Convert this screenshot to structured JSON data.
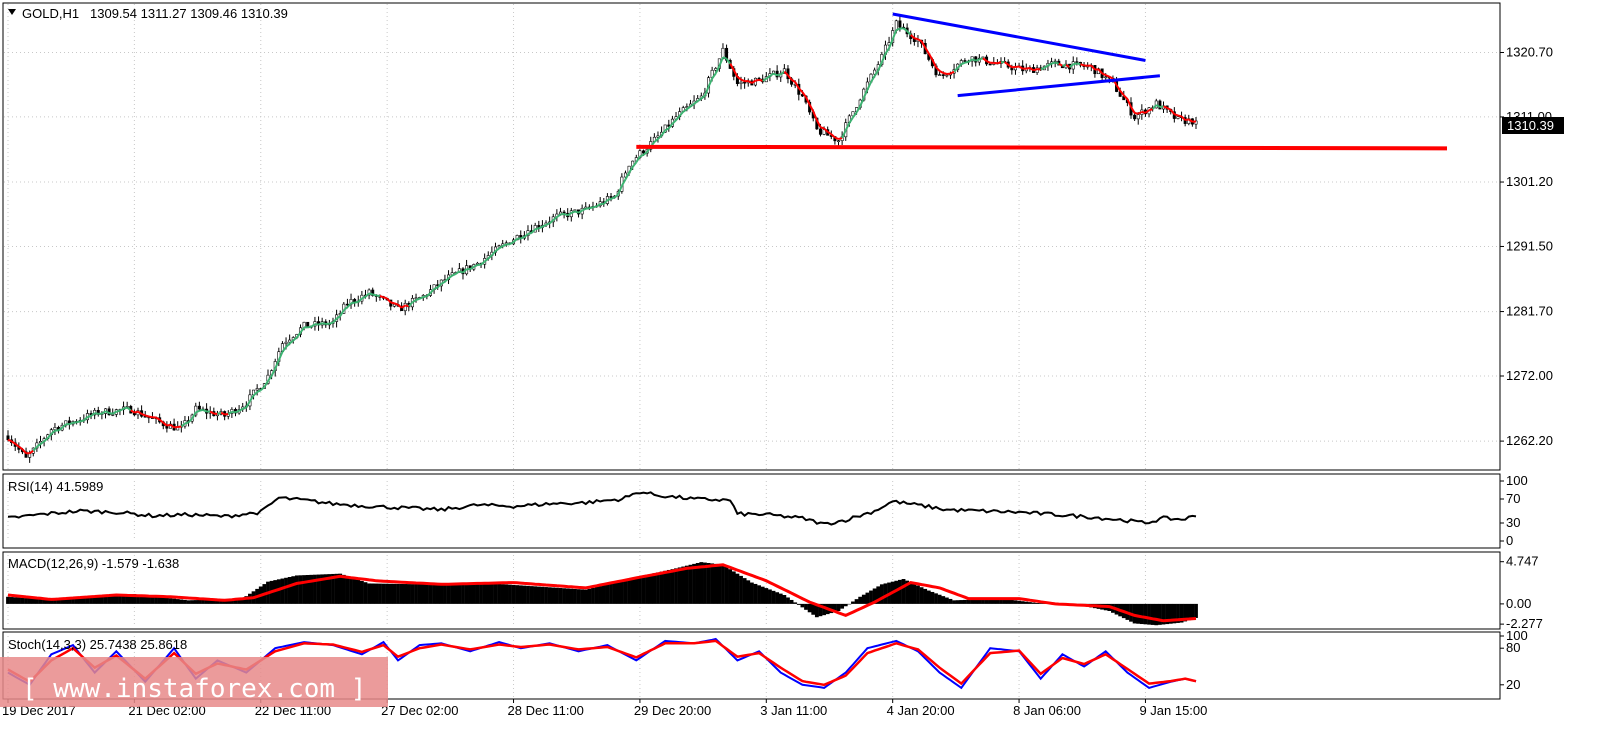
{
  "window": {
    "symbol": "GOLD,H1",
    "ohlc": "1309.54 1311.27 1309.46 1310.39",
    "current_price": "1310.39"
  },
  "watermark": "[ www.instaforex.com ]",
  "colors": {
    "background": "#ffffff",
    "bull": "#ffffff",
    "bear": "#000000",
    "fast_ma": "#ff0000",
    "slow_ma": "#3cb371",
    "trendline": "#0000ff",
    "support": "#ff0000",
    "macd_signal": "#ff0000",
    "stoch_main": "#0000ff",
    "stoch_signal": "#ff0000",
    "grid": "#c8c8c8"
  },
  "chart_data": [
    {
      "type": "candlestick",
      "pane": "price",
      "y_ticks": [
        "1320.70",
        "1311.00",
        "1301.20",
        "1291.50",
        "1281.70",
        "1272.00",
        "1262.20"
      ],
      "ylim": [
        1258.0,
        1328.0
      ],
      "x_ticks": [
        "19 Dec 2017",
        "21 Dec 02:00",
        "22 Dec 11:00",
        "27 Dec 02:00",
        "28 Dec 11:00",
        "29 Dec 20:00",
        "3 Jan 11:00",
        "4 Jan 20:00",
        "8 Jan 06:00",
        "9 Jan 15:00"
      ],
      "x_tick_bars": [
        0,
        35,
        70,
        105,
        140,
        175,
        210,
        245,
        280,
        315
      ],
      "bar_count": 330,
      "price_path": [
        [
          0,
          1263.0
        ],
        [
          5,
          1259.5
        ],
        [
          12,
          1264.0
        ],
        [
          25,
          1266.5
        ],
        [
          34,
          1267.0
        ],
        [
          42,
          1265.0
        ],
        [
          48,
          1264.0
        ],
        [
          52,
          1267.0
        ],
        [
          60,
          1266.0
        ],
        [
          66,
          1268.0
        ],
        [
          72,
          1272.0
        ],
        [
          76,
          1277.0
        ],
        [
          82,
          1279.5
        ],
        [
          90,
          1280.0
        ],
        [
          94,
          1283.0
        ],
        [
          100,
          1284.5
        ],
        [
          108,
          1282.0
        ],
        [
          115,
          1284.0
        ],
        [
          121,
          1286.5
        ],
        [
          130,
          1289.0
        ],
        [
          138,
          1292.0
        ],
        [
          144,
          1294.0
        ],
        [
          152,
          1296.0
        ],
        [
          160,
          1297.0
        ],
        [
          168,
          1299.0
        ],
        [
          172,
          1304.0
        ],
        [
          176,
          1306.0
        ],
        [
          180,
          1308.0
        ],
        [
          185,
          1311.0
        ],
        [
          192,
          1314.0
        ],
        [
          198,
          1321.0
        ],
        [
          202,
          1316.0
        ],
        [
          208,
          1316.5
        ],
        [
          215,
          1318.0
        ],
        [
          220,
          1314.0
        ],
        [
          224,
          1309.0
        ],
        [
          230,
          1307.5
        ],
        [
          236,
          1314.0
        ],
        [
          242,
          1320.0
        ],
        [
          246,
          1325.0
        ],
        [
          252,
          1322.5
        ],
        [
          258,
          1317.0
        ],
        [
          266,
          1320.0
        ],
        [
          274,
          1319.0
        ],
        [
          282,
          1318.0
        ],
        [
          290,
          1319.0
        ],
        [
          300,
          1318.5
        ],
        [
          306,
          1316.0
        ],
        [
          312,
          1311.0
        ],
        [
          318,
          1313.0
        ],
        [
          324,
          1310.5
        ],
        [
          329,
          1310.39
        ]
      ],
      "support_level": 1306.5,
      "triangle_upper": [
        [
          245,
          1326.5
        ],
        [
          315,
          1319.5
        ]
      ],
      "triangle_lower": [
        [
          263,
          1314.2
        ],
        [
          319,
          1317.2
        ]
      ],
      "last_price": 1310.39
    },
    {
      "type": "line",
      "pane": "rsi",
      "label": "RSI(14) 41.5989",
      "y_ticks": [
        "100",
        "70",
        "30",
        "0"
      ],
      "ylim": [
        0,
        100
      ],
      "value_path": [
        [
          0,
          38
        ],
        [
          10,
          45
        ],
        [
          20,
          50
        ],
        [
          30,
          48
        ],
        [
          40,
          42
        ],
        [
          50,
          44
        ],
        [
          60,
          41
        ],
        [
          70,
          48
        ],
        [
          75,
          72
        ],
        [
          82,
          68
        ],
        [
          90,
          62
        ],
        [
          100,
          58
        ],
        [
          110,
          55
        ],
        [
          120,
          52
        ],
        [
          130,
          60
        ],
        [
          140,
          58
        ],
        [
          150,
          62
        ],
        [
          160,
          64
        ],
        [
          170,
          70
        ],
        [
          175,
          82
        ],
        [
          180,
          76
        ],
        [
          190,
          70
        ],
        [
          200,
          68
        ],
        [
          202,
          45
        ],
        [
          210,
          44
        ],
        [
          220,
          38
        ],
        [
          226,
          28
        ],
        [
          232,
          35
        ],
        [
          240,
          50
        ],
        [
          245,
          66
        ],
        [
          252,
          60
        ],
        [
          260,
          52
        ],
        [
          270,
          50
        ],
        [
          280,
          48
        ],
        [
          290,
          44
        ],
        [
          300,
          40
        ],
        [
          310,
          34
        ],
        [
          315,
          30
        ],
        [
          320,
          38
        ],
        [
          325,
          36
        ],
        [
          329,
          41.6
        ]
      ]
    },
    {
      "type": "histogram+line",
      "pane": "macd",
      "label": "MACD(12,26,9) -1.579 -1.638",
      "y_ticks": [
        "4.747",
        "0.00",
        "-2.277"
      ],
      "ylim": [
        -2.6,
        5.5
      ],
      "hist_path": [
        [
          0,
          0.8
        ],
        [
          10,
          0.5
        ],
        [
          20,
          0.7
        ],
        [
          35,
          1.1
        ],
        [
          50,
          0.4
        ],
        [
          65,
          0.6
        ],
        [
          72,
          2.5
        ],
        [
          80,
          3.2
        ],
        [
          92,
          3.4
        ],
        [
          100,
          2.3
        ],
        [
          115,
          2.2
        ],
        [
          130,
          2.4
        ],
        [
          145,
          2.0
        ],
        [
          160,
          1.6
        ],
        [
          172,
          2.8
        ],
        [
          185,
          4.0
        ],
        [
          192,
          4.7
        ],
        [
          198,
          4.4
        ],
        [
          206,
          2.4
        ],
        [
          215,
          1.0
        ],
        [
          224,
          -1.5
        ],
        [
          230,
          -0.8
        ],
        [
          236,
          0.8
        ],
        [
          242,
          2.2
        ],
        [
          248,
          2.8
        ],
        [
          255,
          1.5
        ],
        [
          262,
          0.4
        ],
        [
          275,
          0.6
        ],
        [
          285,
          0.1
        ],
        [
          295,
          0.0
        ],
        [
          305,
          -0.8
        ],
        [
          312,
          -2.2
        ],
        [
          318,
          -2.4
        ],
        [
          325,
          -2.1
        ],
        [
          329,
          -1.58
        ]
      ],
      "signal_path": [
        [
          0,
          1.0
        ],
        [
          12,
          0.5
        ],
        [
          30,
          1.0
        ],
        [
          45,
          0.8
        ],
        [
          60,
          0.4
        ],
        [
          68,
          0.7
        ],
        [
          80,
          2.3
        ],
        [
          92,
          3.1
        ],
        [
          102,
          2.6
        ],
        [
          120,
          2.2
        ],
        [
          140,
          2.4
        ],
        [
          160,
          1.8
        ],
        [
          175,
          3.0
        ],
        [
          188,
          4.0
        ],
        [
          198,
          4.4
        ],
        [
          210,
          2.6
        ],
        [
          222,
          0.2
        ],
        [
          232,
          -1.3
        ],
        [
          240,
          0.2
        ],
        [
          250,
          2.4
        ],
        [
          258,
          1.8
        ],
        [
          266,
          0.6
        ],
        [
          280,
          0.6
        ],
        [
          290,
          0.0
        ],
        [
          305,
          -0.3
        ],
        [
          312,
          -1.3
        ],
        [
          320,
          -1.9
        ],
        [
          329,
          -1.64
        ]
      ]
    },
    {
      "type": "line",
      "pane": "stochastic",
      "label": "Stoch(14,3,3) 25.7438 25.8618",
      "y_ticks": [
        "100",
        "80",
        "20"
      ],
      "ylim": [
        0,
        100
      ],
      "main_path": [
        [
          0,
          40
        ],
        [
          6,
          20
        ],
        [
          12,
          70
        ],
        [
          18,
          85
        ],
        [
          24,
          40
        ],
        [
          30,
          75
        ],
        [
          38,
          25
        ],
        [
          46,
          80
        ],
        [
          52,
          30
        ],
        [
          58,
          60
        ],
        [
          66,
          40
        ],
        [
          74,
          80
        ],
        [
          82,
          90
        ],
        [
          90,
          85
        ],
        [
          98,
          70
        ],
        [
          104,
          90
        ],
        [
          108,
          60
        ],
        [
          114,
          85
        ],
        [
          120,
          88
        ],
        [
          128,
          75
        ],
        [
          136,
          90
        ],
        [
          142,
          80
        ],
        [
          150,
          88
        ],
        [
          158,
          75
        ],
        [
          166,
          85
        ],
        [
          174,
          60
        ],
        [
          182,
          92
        ],
        [
          190,
          88
        ],
        [
          196,
          95
        ],
        [
          202,
          60
        ],
        [
          208,
          75
        ],
        [
          214,
          40
        ],
        [
          220,
          20
        ],
        [
          226,
          15
        ],
        [
          232,
          40
        ],
        [
          238,
          80
        ],
        [
          246,
          92
        ],
        [
          252,
          75
        ],
        [
          258,
          40
        ],
        [
          264,
          15
        ],
        [
          272,
          80
        ],
        [
          280,
          75
        ],
        [
          286,
          30
        ],
        [
          292,
          70
        ],
        [
          298,
          50
        ],
        [
          304,
          75
        ],
        [
          310,
          40
        ],
        [
          316,
          15
        ],
        [
          322,
          25
        ],
        [
          326,
          30
        ],
        [
          329,
          25.7
        ]
      ],
      "signal_path": [
        [
          0,
          45
        ],
        [
          6,
          25
        ],
        [
          12,
          60
        ],
        [
          18,
          80
        ],
        [
          24,
          48
        ],
        [
          30,
          68
        ],
        [
          38,
          30
        ],
        [
          46,
          72
        ],
        [
          52,
          38
        ],
        [
          58,
          55
        ],
        [
          66,
          45
        ],
        [
          74,
          75
        ],
        [
          82,
          88
        ],
        [
          90,
          86
        ],
        [
          98,
          74
        ],
        [
          104,
          85
        ],
        [
          108,
          66
        ],
        [
          114,
          80
        ],
        [
          120,
          86
        ],
        [
          128,
          78
        ],
        [
          136,
          86
        ],
        [
          142,
          82
        ],
        [
          150,
          86
        ],
        [
          158,
          78
        ],
        [
          166,
          82
        ],
        [
          174,
          65
        ],
        [
          182,
          88
        ],
        [
          190,
          88
        ],
        [
          196,
          92
        ],
        [
          202,
          66
        ],
        [
          208,
          72
        ],
        [
          214,
          48
        ],
        [
          220,
          26
        ],
        [
          226,
          20
        ],
        [
          232,
          35
        ],
        [
          238,
          72
        ],
        [
          246,
          88
        ],
        [
          252,
          78
        ],
        [
          258,
          48
        ],
        [
          264,
          22
        ],
        [
          272,
          72
        ],
        [
          280,
          76
        ],
        [
          286,
          38
        ],
        [
          292,
          64
        ],
        [
          298,
          54
        ],
        [
          304,
          70
        ],
        [
          310,
          46
        ],
        [
          316,
          22
        ],
        [
          322,
          26
        ],
        [
          326,
          30
        ],
        [
          329,
          25.9
        ]
      ]
    }
  ]
}
